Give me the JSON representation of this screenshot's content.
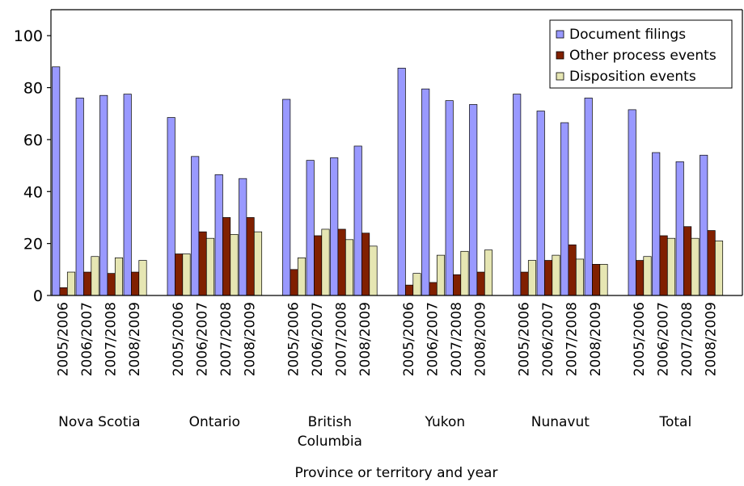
{
  "chart_data": {
    "type": "bar",
    "xlabel": "Province or territory and year",
    "ylabel": "",
    "ylim": [
      0,
      110
    ],
    "yticks": [
      0,
      20,
      40,
      60,
      80,
      100
    ],
    "grid": false,
    "legend_position": "top-right",
    "groups": [
      {
        "label": "Nova Scotia",
        "years": [
          "2005/2006",
          "2006/2007",
          "2007/2008",
          "2008/2009"
        ]
      },
      {
        "label": "Ontario",
        "years": [
          "2005/2006",
          "2006/2007",
          "2007/2008",
          "2008/2009"
        ]
      },
      {
        "label": "British Columbia",
        "label_lines": [
          "British",
          "Columbia"
        ],
        "years": [
          "2005/2006",
          "2006/2007",
          "2007/2008",
          "2008/2009"
        ]
      },
      {
        "label": "Yukon",
        "years": [
          "2005/2006",
          "2006/2007",
          "2007/2008",
          "2008/2009"
        ]
      },
      {
        "label": "Nunavut",
        "years": [
          "2005/2006",
          "2006/2007",
          "2007/2008",
          "2008/2009"
        ]
      },
      {
        "label": "Total",
        "years": [
          "2005/2006",
          "2006/2007",
          "2007/2008",
          "2008/2009"
        ]
      }
    ],
    "series": [
      {
        "name": "Document filings",
        "color": "#9999ff",
        "values": [
          [
            88,
            76,
            77,
            77.5
          ],
          [
            68.5,
            53.5,
            46.5,
            45
          ],
          [
            75.5,
            52,
            53,
            57.5
          ],
          [
            87.5,
            79.5,
            75,
            73.5
          ],
          [
            77.5,
            71,
            66.5,
            76
          ],
          [
            71.5,
            55,
            51.5,
            54
          ]
        ]
      },
      {
        "name": "Other process events",
        "color": "#802000",
        "values": [
          [
            3,
            9,
            8.5,
            9
          ],
          [
            16,
            24.5,
            30,
            30
          ],
          [
            10,
            23,
            25.5,
            24
          ],
          [
            4,
            5,
            8,
            9
          ],
          [
            9,
            13.5,
            19.5,
            12
          ],
          [
            13.5,
            23,
            26.5,
            25
          ]
        ]
      },
      {
        "name": "Disposition events",
        "color": "#e6e6b3",
        "values": [
          [
            9,
            15,
            14.5,
            13.5
          ],
          [
            16,
            22,
            23.5,
            24.5
          ],
          [
            14.5,
            25.5,
            21.5,
            19
          ],
          [
            8.5,
            15.5,
            17,
            17.5
          ],
          [
            13.5,
            15.5,
            14,
            12
          ],
          [
            15,
            22,
            22,
            21
          ]
        ]
      }
    ]
  }
}
